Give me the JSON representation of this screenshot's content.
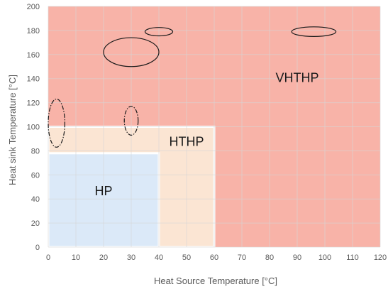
{
  "chart_data": {
    "type": "area",
    "xlabel": "Heat Source Temperature [°C]",
    "ylabel": "Heat sink Temperature [°C]",
    "xlim": [
      0,
      120
    ],
    "ylim": [
      0,
      200
    ],
    "x_ticks": [
      "0",
      "10",
      "20",
      "30",
      "40",
      "50",
      "60",
      "70",
      "80",
      "90",
      "100",
      "110",
      "120"
    ],
    "y_ticks": [
      "0",
      "20",
      "40",
      "60",
      "80",
      "100",
      "120",
      "140",
      "160",
      "180",
      "200"
    ],
    "grid": true,
    "regions": [
      {
        "name": "VHTHP",
        "x": [
          0,
          120
        ],
        "y": [
          0,
          200
        ],
        "color": "#f8b3a8",
        "label_at": [
          90,
          140
        ]
      },
      {
        "name": "HTHP",
        "x": [
          0,
          60
        ],
        "y": [
          0,
          100
        ],
        "color": "#fbe5d3",
        "label_at": [
          50,
          87
        ]
      },
      {
        "name": "HP",
        "x": [
          0,
          40
        ],
        "y": [
          0,
          78
        ],
        "color": "#dbe9f8",
        "label_at": [
          20,
          46
        ]
      }
    ],
    "ellipses": [
      {
        "cx": 30,
        "cy": 162,
        "rx": 10,
        "ry": 12,
        "style": "solid"
      },
      {
        "cx": 40,
        "cy": 179,
        "rx": 5,
        "ry": 3.5,
        "style": "solid"
      },
      {
        "cx": 96,
        "cy": 179,
        "rx": 8,
        "ry": 4,
        "style": "solid"
      },
      {
        "cx": 3,
        "cy": 103,
        "rx": 3,
        "ry": 20,
        "style": "dashdot"
      },
      {
        "cx": 30,
        "cy": 105,
        "rx": 2.5,
        "ry": 12,
        "style": "dashdot"
      }
    ]
  }
}
